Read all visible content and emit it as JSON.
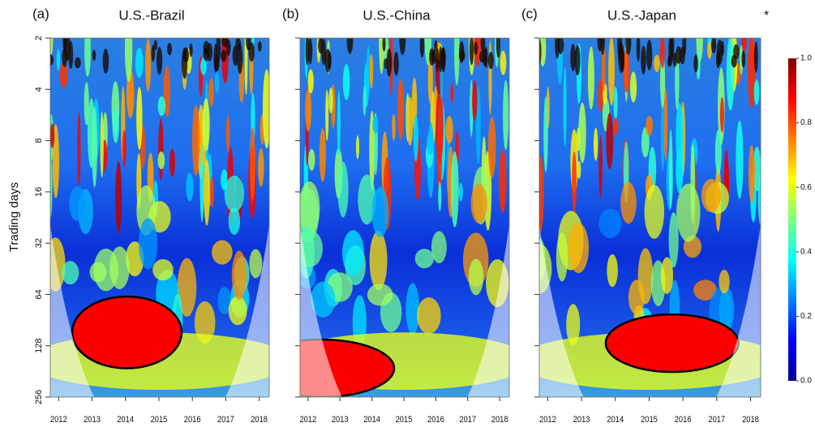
{
  "chart_data": [
    {
      "type": "heatmap",
      "panel_label": "(a)",
      "title": "U.S.-Brazil",
      "xlim": [
        2011.75,
        2018.3
      ],
      "xticks": [
        2012,
        2013,
        2014,
        2015,
        2016,
        2017,
        2018
      ],
      "ylim": [
        2,
        256
      ],
      "yticks": [
        2,
        4,
        8,
        16,
        32,
        64,
        128,
        256
      ],
      "ylog": true,
      "ytick_labels": true,
      "ylabel": "Trading days"
    },
    {
      "type": "heatmap",
      "panel_label": "(b)",
      "title": "U.S.-China",
      "xlim": [
        2011.75,
        2018.3
      ],
      "xticks": [
        2012,
        2013,
        2014,
        2015,
        2016,
        2017,
        2018
      ],
      "ylim": [
        2,
        256
      ],
      "yticks": [
        2,
        4,
        8,
        16,
        32,
        64,
        128,
        256
      ],
      "ylog": true,
      "ytick_labels": false
    },
    {
      "type": "heatmap",
      "panel_label": "(c)",
      "title": "U.S.-Japan",
      "xlim": [
        2011.75,
        2018.3
      ],
      "xticks": [
        2012,
        2013,
        2014,
        2015,
        2016,
        2017,
        2018
      ],
      "ylim": [
        2,
        256
      ],
      "yticks": [
        2,
        4,
        8,
        16,
        32,
        64,
        128,
        256
      ],
      "ylog": true,
      "ytick_labels": false
    }
  ],
  "colorbar": {
    "lim": [
      0,
      1
    ],
    "ticks": [
      {
        "value": 0,
        "label": "0.0"
      },
      {
        "value": 0.2,
        "label": "0.2"
      },
      {
        "value": 0.4,
        "label": "0.4"
      },
      {
        "value": 0.6,
        "label": "0.6"
      },
      {
        "value": 0.8,
        "label": "0.8"
      },
      {
        "value": 1,
        "label": "1.0"
      }
    ]
  },
  "marker": "*"
}
